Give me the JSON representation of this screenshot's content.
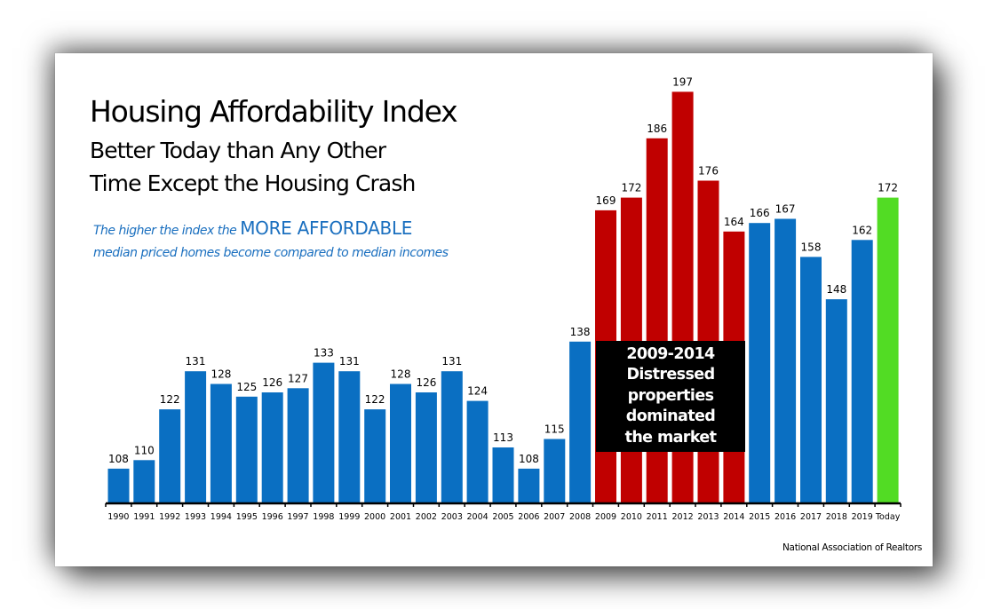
{
  "chart_data": {
    "type": "bar",
    "title": "Housing Affordability Index",
    "subtitle": [
      "Better Today than Any Other",
      "Time Except the Housing Crash"
    ],
    "annotation_note": {
      "prefix": "The higher the index the ",
      "emphasis": "MORE AFFORDABLE",
      "line2": "median priced homes become compared to median incomes"
    },
    "callout": [
      "2009-2014",
      "Distressed",
      "properties",
      "dominated",
      "the market"
    ],
    "source": "National Association of Realtors",
    "xlabel": "",
    "ylabel": "",
    "ylim": [
      100,
      200
    ],
    "grid": false,
    "legend": "none",
    "categories": [
      "1990",
      "1991",
      "1992",
      "1993",
      "1994",
      "1995",
      "1996",
      "1997",
      "1998",
      "1999",
      "2000",
      "2001",
      "2002",
      "2003",
      "2004",
      "2005",
      "2006",
      "2007",
      "2008",
      "2009",
      "2010",
      "2011",
      "2012",
      "2013",
      "2014",
      "2015",
      "2016",
      "2017",
      "2018",
      "2019",
      "Today"
    ],
    "values": [
      108,
      110,
      122,
      131,
      128,
      125,
      126,
      127,
      133,
      131,
      122,
      128,
      126,
      131,
      124,
      113,
      108,
      115,
      138,
      169,
      172,
      186,
      197,
      176,
      164,
      166,
      167,
      158,
      148,
      162,
      172
    ],
    "bar_groups": [
      "normal",
      "normal",
      "normal",
      "normal",
      "normal",
      "normal",
      "normal",
      "normal",
      "normal",
      "normal",
      "normal",
      "normal",
      "normal",
      "normal",
      "normal",
      "normal",
      "normal",
      "normal",
      "normal",
      "distressed",
      "distressed",
      "distressed",
      "distressed",
      "distressed",
      "distressed",
      "normal",
      "normal",
      "normal",
      "normal",
      "normal",
      "today"
    ],
    "colors": {
      "normal": "#0a6fc2",
      "distressed": "#c00000",
      "today": "#52dc24",
      "callout_bg": "#000000",
      "note_text": "#1a6fbf"
    }
  }
}
